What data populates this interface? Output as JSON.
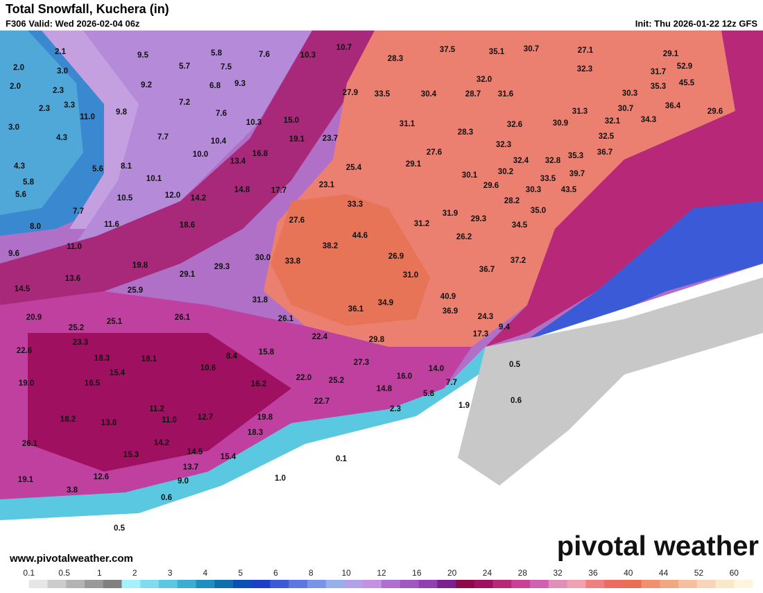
{
  "header": {
    "title": "Total Snowfall, Kuchera (in)",
    "valid": "F306 Valid: Wed 2026-02-04 06z",
    "init": "Init: Thu 2026-01-22 12z GFS"
  },
  "map_labels": [
    "2.1",
    "9.5",
    "5.8",
    "7.6",
    "10.3",
    "10.7",
    "37.5",
    "35.1",
    "30.7",
    "27.1",
    "29.1",
    "2.0",
    "3.0",
    "5.7",
    "7.5",
    "28.3",
    "32.3",
    "31.7",
    "52.9",
    "2.0",
    "2.3",
    "9.2",
    "6.8",
    "9.3",
    "32.0",
    "35.3",
    "45.5",
    "27.9",
    "33.5",
    "30.4",
    "28.7",
    "31.6",
    "30.3",
    "2.3",
    "3.3",
    "7.2",
    "36.4",
    "11.0",
    "9.8",
    "7.6",
    "15.0",
    "31.3",
    "30.7",
    "29.6",
    "3.0",
    "10.3",
    "31.1",
    "32.6",
    "30.9",
    "32.1",
    "34.3",
    "4.3",
    "7.7",
    "19.1",
    "23.7",
    "28.3",
    "32.5",
    "10.4",
    "32.3",
    "35.3",
    "36.7",
    "10.0",
    "16.8",
    "27.6",
    "4.3",
    "5.6",
    "8.1",
    "13.4",
    "25.4",
    "29.1",
    "32.4",
    "32.8",
    "10.1",
    "30.1",
    "30.2",
    "33.5",
    "39.7",
    "5.8",
    "14.8",
    "17.7",
    "23.1",
    "29.6",
    "30.3",
    "43.5",
    "5.6",
    "10.5",
    "12.0",
    "14.2",
    "33.3",
    "28.2",
    "35.0",
    "7.7",
    "31.9",
    "29.3",
    "8.0",
    "11.6",
    "18.6",
    "27.6",
    "31.2",
    "34.5",
    "44.6",
    "26.2",
    "11.0",
    "38.2",
    "9.6",
    "30.0",
    "33.8",
    "26.9",
    "37.2",
    "19.8",
    "29.3",
    "36.7",
    "13.6",
    "29.1",
    "31.0",
    "14.5",
    "25.9",
    "31.8",
    "40.9",
    "34.9",
    "36.1",
    "36.9",
    "20.9",
    "26.1",
    "26.1",
    "24.3",
    "25.2",
    "25.1",
    "9.4",
    "17.3",
    "22.4",
    "29.8",
    "23.3",
    "22.6",
    "15.8",
    "8.4",
    "18.3",
    "18.1",
    "27.3",
    "0.5",
    "15.4",
    "10.6",
    "14.0",
    "19.0",
    "16.5",
    "16.0",
    "22.0",
    "25.2",
    "16.2",
    "7.7",
    "14.8",
    "5.8",
    "0.6",
    "11.2",
    "2.3",
    "1.9",
    "22.7",
    "18.2",
    "13.8",
    "11.0",
    "12.7",
    "19.8",
    "18.3",
    "26.1",
    "14.2",
    "15.3",
    "14.5",
    "15.4",
    "0.1",
    "13.7",
    "12.6",
    "19.1",
    "9.0",
    "1.0",
    "3.8",
    "0.6",
    "0.5"
  ],
  "watermark": {
    "url": "www.pivotalweather.com",
    "brand": "pivotal weather"
  },
  "colorbar": {
    "labels": [
      "0.1",
      "0.5",
      "1",
      "2",
      "3",
      "4",
      "5",
      "6",
      "8",
      "10",
      "12",
      "16",
      "20",
      "24",
      "28",
      "32",
      "36",
      "40",
      "44",
      "52",
      "60"
    ],
    "colors": [
      "#ffffff",
      "#e6e6e6",
      "#cccccc",
      "#b3b3b3",
      "#999999",
      "#808080",
      "#a5f0ff",
      "#7fdcf0",
      "#5ac8e0",
      "#3aaed2",
      "#1f8fbf",
      "#0f6fac",
      "#0a50b5",
      "#1e3ec8",
      "#3a5ad8",
      "#5a78e0",
      "#7894e6",
      "#96b0ec",
      "#b4a0e6",
      "#c490e0",
      "#b070d0",
      "#a058c0",
      "#9040b0",
      "#7c2090",
      "#8c0a4a",
      "#a01060",
      "#b82878",
      "#c84098",
      "#d060b0",
      "#e090b8",
      "#f0a0b0",
      "#f08080",
      "#ec6c60",
      "#e87050",
      "#f09070",
      "#f0a880",
      "#f4c0a0",
      "#f8d4b8",
      "#fae8c8",
      "#fcf6dc"
    ]
  }
}
